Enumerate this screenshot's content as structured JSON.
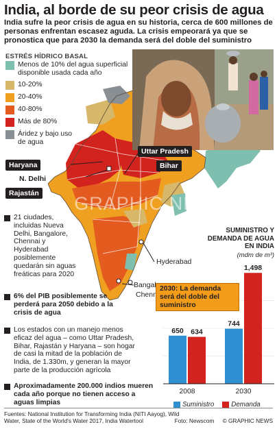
{
  "header": {
    "title": "India, al borde de su peor crisis de agua",
    "subtitle": "India sufre la peor crisis de agua en su historia, cerca de 600 millones de personas enfrentan escasez aguda. La crisis empeorará ya que se pronostica que para 2030 la demanda será del doble del suministro"
  },
  "legend": {
    "title": "ESTRÉS HÍDRICO BASAL",
    "items": [
      {
        "label": "Menos de 10% del agua superficial disponible usada cada año",
        "color": "#7fbfb0"
      },
      {
        "label": "10-20%",
        "color": "#d7b86b"
      },
      {
        "label": "20-40%",
        "color": "#f0a020"
      },
      {
        "label": "40-80%",
        "color": "#e35b1e"
      },
      {
        "label": "Más de 80%",
        "color": "#d2231f"
      },
      {
        "label": "Áridez y bajo uso de agua",
        "color": "#8a8f94"
      }
    ]
  },
  "map": {
    "labels": {
      "uttar_pradesh": "Uttar Pradesh",
      "haryana": "Haryana",
      "bihar": "Bihar",
      "n_delhi": "N. Delhi",
      "rajastan": "Rajastán",
      "hyderabad": "Hyderabad",
      "bangalore": "Bangalore",
      "chennai": "Chennai"
    }
  },
  "bullets": [
    {
      "text": "21 ciudades, incluidas Nueva Delhi, Bangalore, Chennai y Hyderabad posiblemente quedarán sin aguas freáticas para 2020",
      "bold": false
    },
    {
      "text": "6% del PIB posiblemente se perderá para 2050 debido a la crisis de agua",
      "bold": true
    },
    {
      "text": "Los estados con un manejo menos eficaz del agua – como Uttar Pradesh, Bihar, Rajastán y Haryana – son hogar de casi la mitad de la población de India, de 1.330m, y generan la mayor parte de la producción agrícola",
      "bold": false
    },
    {
      "text": "Aproximadamente 200.000 indios mueren cada año porque no tienen acceso a aguas limpias",
      "bold": true
    }
  ],
  "chart_data": {
    "type": "bar",
    "title": "SUMINISTRO Y DEMANDA DE AGUA EN INDIA",
    "unit": "(mdm de m³)",
    "categories": [
      "2008",
      "2030"
    ],
    "series": [
      {
        "name": "Suministro",
        "values": [
          650,
          744
        ],
        "color": "#2f8fd0"
      },
      {
        "name": "Demanda",
        "values": [
          634,
          1498
        ],
        "color": "#d2231f"
      }
    ],
    "value_labels": [
      [
        "650",
        "634"
      ],
      [
        "744",
        "1,498"
      ]
    ],
    "ylim": [
      0,
      1500
    ],
    "annotation": "2030: La demanda será del doble del suministro"
  },
  "footer": {
    "sources": "Fuentes: National Institution for Transforming India (NITI Aayog), Wild Water, State of the World's Water 2017, India Watertool",
    "photo_credit": "Foto: Newscom",
    "copyright": "© GRAPHIC NEWS"
  },
  "watermark": "GRAPHIC NEWS"
}
